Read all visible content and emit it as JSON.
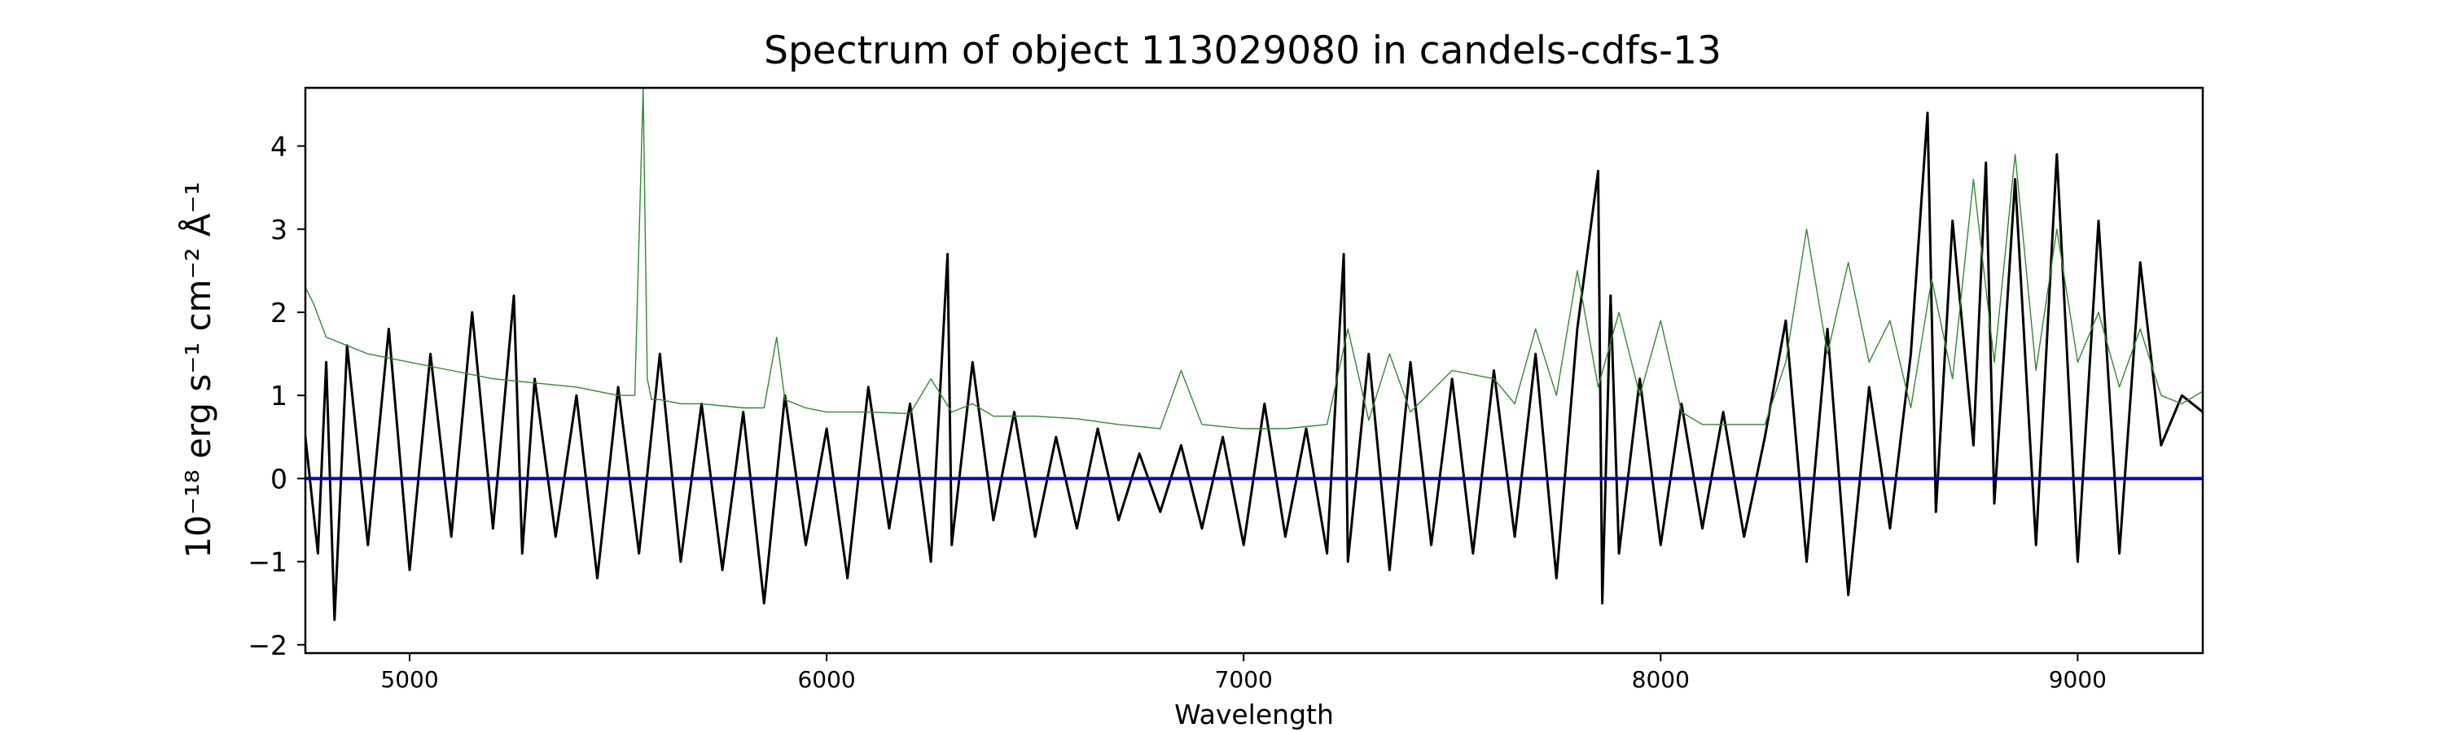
{
  "chart_data": {
    "type": "line",
    "title": "Spectrum of object 113029080 in candels-cdfs-13",
    "xlabel": "Wavelength",
    "ylabel": "10⁻¹⁸ erg s⁻¹ cm⁻² Å⁻¹",
    "xlim": [
      4750,
      9300
    ],
    "ylim": [
      -2.1,
      4.7
    ],
    "xticks": [
      5000,
      6000,
      7000,
      8000,
      9000
    ],
    "yticks": [
      -2,
      -1,
      0,
      1,
      2,
      3,
      4
    ],
    "grid": false,
    "legend": "none",
    "series": [
      {
        "color": "#000000",
        "values": {
          "x": [
            4750,
            4780,
            4800,
            4820,
            4850,
            4900,
            4950,
            5000,
            5050,
            5100,
            5150,
            5200,
            5250,
            5270,
            5300,
            5350,
            5400,
            5450,
            5500,
            5550,
            5600,
            5650,
            5700,
            5750,
            5800,
            5850,
            5900,
            5950,
            6000,
            6050,
            6100,
            6150,
            6200,
            6250,
            6290,
            6300,
            6350,
            6400,
            6450,
            6500,
            6550,
            6600,
            6650,
            6700,
            6750,
            6800,
            6850,
            6900,
            6950,
            7000,
            7050,
            7100,
            7150,
            7200,
            7240,
            7250,
            7300,
            7350,
            7400,
            7450,
            7500,
            7550,
            7600,
            7650,
            7700,
            7750,
            7800,
            7850,
            7860,
            7880,
            7900,
            7950,
            8000,
            8050,
            8100,
            8150,
            8200,
            8250,
            8300,
            8350,
            8400,
            8450,
            8500,
            8550,
            8600,
            8640,
            8660,
            8700,
            8750,
            8780,
            8800,
            8850,
            8900,
            8950,
            9000,
            9050,
            9100,
            9150,
            9200,
            9250,
            9300
          ],
          "y": [
            0.5,
            -0.9,
            1.4,
            -1.7,
            1.6,
            -0.8,
            1.8,
            -1.1,
            1.5,
            -0.7,
            2.0,
            -0.6,
            2.2,
            -0.9,
            1.2,
            -0.7,
            1.0,
            -1.2,
            1.1,
            -0.9,
            1.5,
            -1.0,
            0.9,
            -1.1,
            0.8,
            -1.5,
            1.0,
            -0.8,
            0.6,
            -1.2,
            1.1,
            -0.6,
            0.9,
            -1.0,
            2.7,
            -0.8,
            1.4,
            -0.5,
            0.8,
            -0.7,
            0.5,
            -0.6,
            0.6,
            -0.5,
            0.3,
            -0.4,
            0.4,
            -0.6,
            0.5,
            -0.8,
            0.9,
            -0.7,
            0.6,
            -0.9,
            2.7,
            -1.0,
            1.5,
            -1.1,
            1.4,
            -0.8,
            1.2,
            -0.9,
            1.3,
            -0.7,
            1.5,
            -1.2,
            1.8,
            3.7,
            -1.5,
            2.2,
            -0.9,
            1.2,
            -0.8,
            0.9,
            -0.6,
            0.8,
            -0.7,
            0.5,
            1.9,
            -1.0,
            1.8,
            -1.4,
            1.1,
            -0.6,
            1.5,
            4.4,
            -0.4,
            3.1,
            0.4,
            3.8,
            -0.3,
            3.6,
            -0.8,
            3.9,
            -1.0,
            3.1,
            -0.9,
            2.6,
            0.4,
            1.0,
            0.8
          ]
        }
      },
      {
        "color": "#2e8b2e",
        "values": {
          "x": [
            4750,
            4770,
            4800,
            4850,
            4900,
            5000,
            5100,
            5200,
            5300,
            5400,
            5500,
            5540,
            5560,
            5570,
            5580,
            5600,
            5650,
            5700,
            5800,
            5850,
            5880,
            5900,
            5950,
            6000,
            6100,
            6200,
            6250,
            6300,
            6350,
            6400,
            6500,
            6600,
            6700,
            6800,
            6850,
            6900,
            7000,
            7100,
            7200,
            7250,
            7300,
            7350,
            7400,
            7500,
            7600,
            7650,
            7700,
            7750,
            7800,
            7850,
            7900,
            7950,
            8000,
            8050,
            8100,
            8200,
            8250,
            8300,
            8350,
            8400,
            8450,
            8500,
            8550,
            8600,
            8650,
            8700,
            8750,
            8800,
            8850,
            8900,
            8950,
            9000,
            9050,
            9100,
            9150,
            9200,
            9250,
            9300
          ],
          "y": [
            2.3,
            2.1,
            1.7,
            1.6,
            1.5,
            1.4,
            1.3,
            1.2,
            1.15,
            1.1,
            1.0,
            1.0,
            4.7,
            1.2,
            0.95,
            0.95,
            0.9,
            0.9,
            0.85,
            0.85,
            1.7,
            0.95,
            0.85,
            0.8,
            0.8,
            0.78,
            1.2,
            0.8,
            0.9,
            0.75,
            0.75,
            0.72,
            0.65,
            0.6,
            1.3,
            0.65,
            0.6,
            0.6,
            0.65,
            1.8,
            0.7,
            1.5,
            0.8,
            1.3,
            1.2,
            0.9,
            1.8,
            1.0,
            2.5,
            1.1,
            2.0,
            1.0,
            1.9,
            0.8,
            0.65,
            0.65,
            0.65,
            1.4,
            3.0,
            1.5,
            2.6,
            1.4,
            1.9,
            0.85,
            2.4,
            1.2,
            3.6,
            1.4,
            3.9,
            1.3,
            3.0,
            1.4,
            2.0,
            1.1,
            1.8,
            1.0,
            0.9,
            1.05
          ]
        }
      },
      {
        "color": "#0000cd",
        "values": {
          "x": [
            4750,
            9300
          ],
          "y": [
            0,
            0
          ]
        }
      }
    ]
  }
}
